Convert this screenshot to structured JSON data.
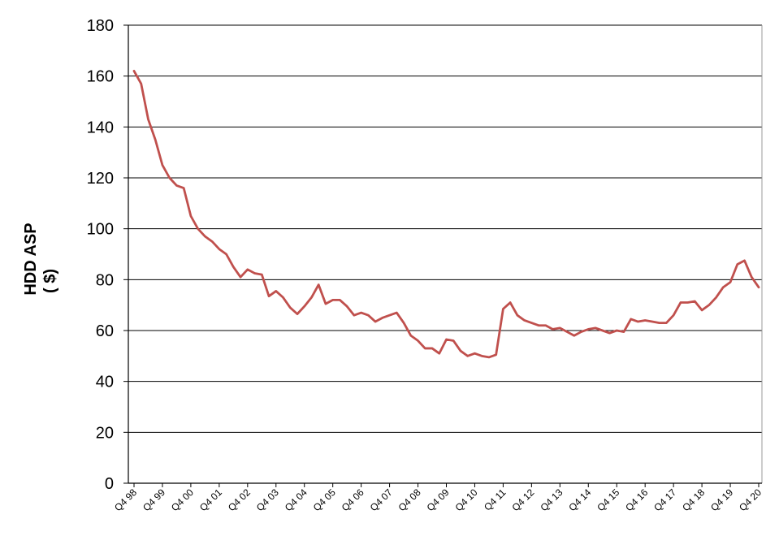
{
  "chart_data": {
    "type": "line",
    "title": "",
    "ylabel": [
      "HDD ASP",
      "( $)"
    ],
    "xlabel": "",
    "ylim": [
      0,
      180
    ],
    "yticks": [
      0,
      20,
      40,
      60,
      80,
      100,
      120,
      140,
      160,
      180
    ],
    "grid": true,
    "legend": "none",
    "line_color": "#c0504d",
    "x_tick_labels": [
      "Q4 98",
      "Q4 99",
      "Q4 00",
      "Q4 01",
      "Q4 02",
      "Q4 03",
      "Q4 04",
      "Q4 05",
      "Q4 06",
      "Q4 07",
      "Q4 08",
      "Q4 09",
      "Q4 10",
      "Q4 11",
      "Q4 12",
      "Q4 13",
      "Q4 14",
      "Q4 15",
      "Q4 16",
      "Q4 17",
      "Q4 18",
      "Q4 19",
      "Q4 20"
    ],
    "series": [
      {
        "values": [
          162,
          157,
          143,
          135,
          125,
          120,
          117,
          116,
          105,
          100,
          97,
          95,
          92,
          90,
          85,
          81,
          84,
          82.5,
          82,
          73.5,
          75.5,
          73,
          69,
          66.5,
          69.5,
          73,
          78,
          70.5,
          72,
          72,
          69.5,
          66,
          67,
          66,
          63.5,
          65,
          66,
          67,
          63,
          58,
          56,
          53,
          53,
          51,
          56.5,
          56,
          52,
          50,
          51,
          50,
          49.5,
          50.5,
          68.5,
          71,
          66,
          64,
          63,
          62,
          62,
          60.5,
          61,
          59.5,
          58,
          59.5,
          60.5,
          61,
          60,
          59,
          60,
          59.5,
          64.5,
          63.5,
          64,
          63.5,
          63,
          63,
          66,
          71,
          71,
          71.5,
          68,
          70,
          73,
          77,
          79,
          86,
          87.5,
          81,
          77
        ]
      }
    ]
  }
}
